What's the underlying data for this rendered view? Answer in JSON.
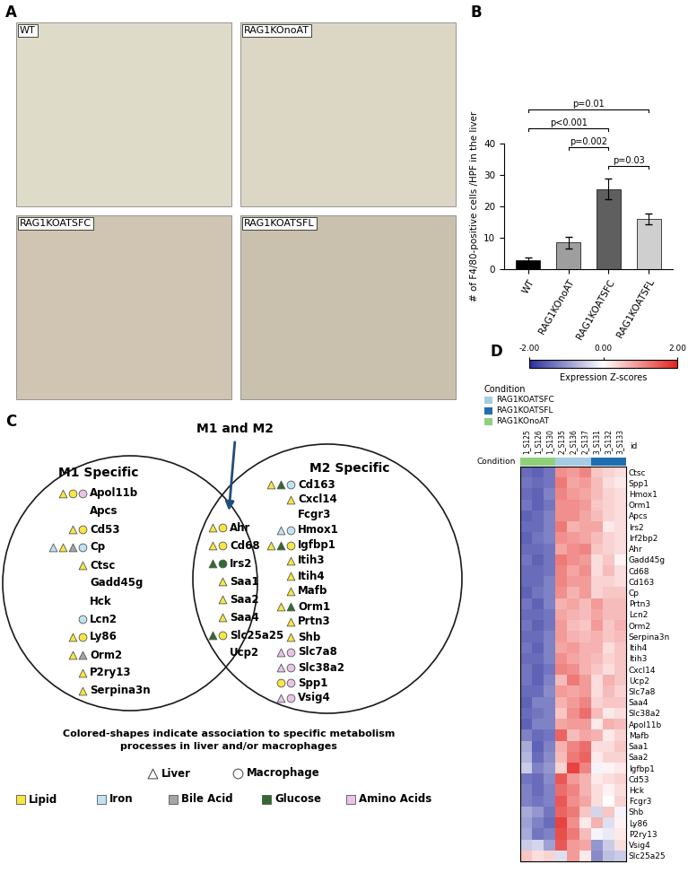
{
  "panel_labels": [
    "A",
    "B",
    "C",
    "D"
  ],
  "micrographs": {
    "labels": [
      "WT",
      "RAG1KOnoAT",
      "RAG1KOATSFC",
      "RAG1KOATSFL"
    ]
  },
  "chart_data": [
    {
      "type": "bar",
      "ylabel": "# of F4/80-positive cells /HPF in the liver",
      "categories": [
        "WT",
        "RAG1KOnoAT",
        "RAG1KOATSFC",
        "RAG1KOATSFL"
      ],
      "values": [
        3,
        8.5,
        25.5,
        16
      ],
      "errors": [
        0.6,
        1.8,
        3.3,
        1.6
      ],
      "colors": [
        "#000000",
        "#9e9e9e",
        "#5f5f5f",
        "#cfcfcf"
      ],
      "ylim": [
        0,
        40
      ],
      "yticks": [
        0,
        10,
        20,
        30,
        40
      ],
      "annotations": [
        {
          "from": "RAG1KOATSFC",
          "to": "RAG1KOATSFL",
          "text": "p=0.03"
        },
        {
          "from": "RAG1KOnoAT",
          "to": "RAG1KOATSFC",
          "text": "p=0.002"
        },
        {
          "from": "WT",
          "to": "RAG1KOATSFC",
          "text": "p<0.001"
        },
        {
          "from": "WT",
          "to": "RAG1KOATSFL",
          "text": "p=0.01"
        }
      ]
    },
    {
      "type": "heatmap",
      "tick_labels": "y",
      "id_label": "id",
      "condition_label": "Condition",
      "x": [
        "1_S125",
        "1_S126",
        "1_S130",
        "2_S135",
        "2_S136",
        "2_S137",
        "3_S131",
        "3_S132",
        "3_S133"
      ],
      "conditions": [
        "RAG1KOnoAT",
        "RAG1KOnoAT",
        "RAG1KOnoAT",
        "RAG1KOATSFC",
        "RAG1KOATSFC",
        "RAG1KOATSFC",
        "RAG1KOATSFL",
        "RAG1KOATSFL",
        "RAG1KOATSFL"
      ],
      "condition_legend": [
        {
          "name": "RAG1KOATSFC",
          "color": "#a6cbe3"
        },
        {
          "name": "RAG1KOATSFL",
          "color": "#1f6fb0"
        },
        {
          "name": "RAG1KOnoAT",
          "color": "#8fd07a"
        }
      ],
      "y": [
        "Ctsc",
        "Spp1",
        "Hmox1",
        "Orm1",
        "Apcs",
        "Irs2",
        "Irf2bp2",
        "Ahr",
        "Gadd45g",
        "Cd68",
        "Cd163",
        "Cp",
        "Prtn3",
        "Lcn2",
        "Orm2",
        "Serpina3n",
        "Itih4",
        "Itih3",
        "Cxcl14",
        "Ucp2",
        "Slc7a8",
        "Saa4",
        "Slc38a2",
        "Apol11b",
        "Mafb",
        "Saa1",
        "Saa2",
        "Igfbp1",
        "Cd53",
        "Hck",
        "Fcgr3",
        "Shb",
        "Ly86",
        "P2ry13",
        "Vsig4",
        "Slc25a25"
      ],
      "values": [
        [
          -1.4,
          -1.5,
          -1.3,
          1.0,
          0.9,
          1.1,
          0.5,
          0.4,
          0.3
        ],
        [
          -1.3,
          -1.4,
          -1.3,
          1.2,
          0.8,
          0.9,
          0.6,
          0.3,
          0.2
        ],
        [
          -1.4,
          -1.5,
          -1.2,
          1.1,
          0.9,
          0.8,
          0.6,
          0.4,
          0.3
        ],
        [
          -1.3,
          -1.5,
          -1.3,
          1.0,
          1.0,
          0.9,
          0.5,
          0.4,
          0.3
        ],
        [
          -1.5,
          -1.4,
          -1.2,
          1.0,
          1.0,
          0.8,
          0.6,
          0.4,
          0.3
        ],
        [
          -1.4,
          -1.4,
          -1.2,
          1.2,
          0.7,
          0.8,
          0.8,
          0.2,
          0.3
        ],
        [
          -1.5,
          -1.3,
          -1.2,
          1.0,
          0.9,
          0.8,
          0.6,
          0.4,
          0.3
        ],
        [
          -1.4,
          -1.4,
          -1.3,
          0.8,
          1.0,
          1.1,
          0.5,
          0.4,
          0.3
        ],
        [
          -1.3,
          -1.5,
          -1.3,
          1.2,
          1.0,
          0.9,
          0.3,
          0.5,
          0.1
        ],
        [
          -1.4,
          -1.4,
          -1.3,
          1.1,
          0.8,
          1.0,
          0.3,
          0.6,
          0.3
        ],
        [
          -1.4,
          -1.4,
          -1.2,
          1.1,
          0.9,
          0.9,
          0.4,
          0.4,
          0.3
        ],
        [
          -1.5,
          -1.3,
          -1.2,
          1.0,
          0.7,
          0.9,
          0.4,
          0.5,
          0.5
        ],
        [
          -1.3,
          -1.5,
          -1.2,
          0.7,
          0.8,
          0.6,
          0.9,
          0.6,
          0.6
        ],
        [
          -1.4,
          -1.4,
          -1.3,
          0.8,
          0.7,
          0.6,
          0.8,
          0.6,
          0.6
        ],
        [
          -1.3,
          -1.5,
          -1.3,
          0.9,
          0.6,
          0.5,
          0.9,
          0.5,
          0.7
        ],
        [
          -1.4,
          -1.4,
          -1.2,
          0.9,
          0.7,
          0.6,
          0.7,
          0.5,
          0.6
        ],
        [
          -1.3,
          -1.5,
          -1.2,
          0.8,
          0.9,
          0.7,
          0.7,
          0.3,
          0.5
        ],
        [
          -1.4,
          -1.4,
          -1.2,
          1.0,
          0.8,
          0.7,
          0.6,
          0.4,
          0.5
        ],
        [
          -1.3,
          -1.5,
          -1.3,
          1.1,
          1.0,
          0.7,
          0.5,
          0.3,
          0.5
        ],
        [
          -1.3,
          -1.5,
          -1.2,
          0.6,
          1.2,
          0.9,
          0.3,
          0.7,
          0.5
        ],
        [
          -1.4,
          -1.4,
          -1.1,
          0.9,
          0.8,
          0.9,
          0.3,
          0.6,
          0.4
        ],
        [
          -1.5,
          -1.2,
          -1.2,
          0.7,
          0.9,
          1.1,
          0.4,
          0.5,
          0.5
        ],
        [
          -1.4,
          -1.3,
          -1.2,
          0.5,
          1.0,
          1.3,
          0.6,
          0.2,
          0.3
        ],
        [
          -1.5,
          -1.2,
          -1.2,
          0.8,
          0.9,
          0.9,
          0.2,
          0.7,
          0.6
        ],
        [
          -1.2,
          -1.4,
          -1.3,
          1.4,
          0.6,
          0.8,
          0.7,
          0.2,
          0.4
        ],
        [
          -0.8,
          -1.5,
          -1.2,
          0.7,
          1.1,
          1.3,
          0.3,
          0.3,
          0.5
        ],
        [
          -0.7,
          -1.4,
          -1.1,
          0.6,
          1.2,
          1.4,
          0.2,
          0.4,
          0.4
        ],
        [
          -0.5,
          -1.2,
          -1.0,
          0.4,
          1.7,
          1.1,
          -0.1,
          0.1,
          0.2
        ],
        [
          -1.3,
          -1.4,
          -1.1,
          1.5,
          0.9,
          0.7,
          0.2,
          0.3,
          0.4
        ],
        [
          -1.2,
          -1.4,
          -1.2,
          1.3,
          1.1,
          0.7,
          0.3,
          0.1,
          0.3
        ],
        [
          -1.2,
          -1.3,
          -1.2,
          1.5,
          1.0,
          0.8,
          0.3,
          0.0,
          0.4
        ],
        [
          -0.8,
          -1.0,
          -1.3,
          1.4,
          1.2,
          0.5,
          -0.4,
          0.5,
          -0.1
        ],
        [
          -0.9,
          -1.2,
          -1.4,
          1.7,
          1.0,
          0.2,
          0.7,
          -0.3,
          0.1
        ],
        [
          -0.8,
          -1.3,
          -1.2,
          1.6,
          1.2,
          0.6,
          -0.1,
          -0.2,
          0.2
        ],
        [
          -0.5,
          -0.4,
          -0.9,
          1.5,
          0.9,
          0.8,
          -1.0,
          -0.5,
          0.3
        ],
        [
          0.5,
          0.3,
          0.4,
          -0.3,
          0.9,
          0.2,
          -1.1,
          -0.6,
          -0.5
        ]
      ],
      "colorbar": {
        "label": "Expression Z-scores",
        "range": [
          -2,
          2
        ],
        "ticks": [
          {
            "value": -2,
            "label": "-2.00"
          },
          {
            "value": 0,
            "label": "0.00"
          },
          {
            "value": 2,
            "label": "2.00"
          }
        ]
      }
    }
  ],
  "diagram": {
    "left_title": "M1 Specific",
    "right_title": "M2 Specific",
    "center_title": "M1 and M2",
    "left": [
      {
        "gene": "Apol11b",
        "marks": [
          [
            "Liver",
            "Lipid"
          ],
          [
            "Macrophage",
            "Lipid"
          ],
          [
            "Macrophage",
            "Amino Acids"
          ]
        ]
      },
      {
        "gene": "Apcs",
        "marks": []
      },
      {
        "gene": "Cd53",
        "marks": [
          [
            "Liver",
            "Lipid"
          ],
          [
            "Macrophage",
            "Lipid"
          ]
        ]
      },
      {
        "gene": "Cp",
        "marks": [
          [
            "Liver",
            "Iron"
          ],
          [
            "Liver",
            "Lipid"
          ],
          [
            "Liver",
            "Bile Acid"
          ],
          [
            "Macrophage",
            "Iron"
          ]
        ]
      },
      {
        "gene": "Ctsc",
        "marks": [
          [
            "Liver",
            "Lipid"
          ]
        ]
      },
      {
        "gene": "Gadd45g",
        "marks": []
      },
      {
        "gene": "Hck",
        "marks": []
      },
      {
        "gene": "Lcn2",
        "marks": [
          [
            "Macrophage",
            "Iron"
          ]
        ]
      },
      {
        "gene": "Ly86",
        "marks": [
          [
            "Liver",
            "Lipid"
          ],
          [
            "Macrophage",
            "Lipid"
          ]
        ]
      },
      {
        "gene": "Orm2",
        "marks": [
          [
            "Liver",
            "Lipid"
          ],
          [
            "Liver",
            "Bile Acid"
          ]
        ]
      },
      {
        "gene": "P2ry13",
        "marks": [
          [
            "Liver",
            "Lipid"
          ]
        ]
      },
      {
        "gene": "Serpina3n",
        "marks": [
          [
            "Liver",
            "Lipid"
          ]
        ]
      }
    ],
    "center": [
      {
        "gene": "Ahr",
        "marks": [
          [
            "Liver",
            "Lipid"
          ],
          [
            "Macrophage",
            "Lipid"
          ]
        ]
      },
      {
        "gene": "Cd68",
        "marks": [
          [
            "Liver",
            "Lipid"
          ],
          [
            "Macrophage",
            "Lipid"
          ]
        ]
      },
      {
        "gene": "Irs2",
        "marks": [
          [
            "Liver",
            "Glucose"
          ],
          [
            "Macrophage",
            "Glucose"
          ]
        ]
      },
      {
        "gene": "Saa1",
        "marks": [
          [
            "Liver",
            "Lipid"
          ]
        ]
      },
      {
        "gene": "Saa2",
        "marks": [
          [
            "Liver",
            "Lipid"
          ]
        ]
      },
      {
        "gene": "Saa4",
        "marks": [
          [
            "Liver",
            "Lipid"
          ]
        ]
      },
      {
        "gene": "Slc25a25",
        "marks": [
          [
            "Liver",
            "Glucose"
          ],
          [
            "Macrophage",
            "Lipid"
          ]
        ]
      },
      {
        "gene": "Ucp2",
        "marks": []
      }
    ],
    "right": [
      {
        "gene": "Cd163",
        "marks": [
          [
            "Liver",
            "Lipid"
          ],
          [
            "Liver",
            "Glucose"
          ],
          [
            "Macrophage",
            "Iron"
          ]
        ]
      },
      {
        "gene": "Cxcl14",
        "marks": [
          [
            "Liver",
            "Lipid"
          ]
        ]
      },
      {
        "gene": "Fcgr3",
        "marks": []
      },
      {
        "gene": "Hmox1",
        "marks": [
          [
            "Liver",
            "Iron"
          ],
          [
            "Macrophage",
            "Iron"
          ]
        ]
      },
      {
        "gene": "Igfbp1",
        "marks": [
          [
            "Liver",
            "Lipid"
          ],
          [
            "Liver",
            "Glucose"
          ],
          [
            "Macrophage",
            "Lipid"
          ]
        ]
      },
      {
        "gene": "Itih3",
        "marks": [
          [
            "Liver",
            "Lipid"
          ]
        ]
      },
      {
        "gene": "Itih4",
        "marks": [
          [
            "Liver",
            "Lipid"
          ]
        ]
      },
      {
        "gene": "Mafb",
        "marks": [
          [
            "Liver",
            "Lipid"
          ]
        ]
      },
      {
        "gene": "Orm1",
        "marks": [
          [
            "Liver",
            "Lipid"
          ],
          [
            "Liver",
            "Glucose"
          ]
        ]
      },
      {
        "gene": "Prtn3",
        "marks": [
          [
            "Liver",
            "Lipid"
          ]
        ]
      },
      {
        "gene": "Shb",
        "marks": [
          [
            "Liver",
            "Lipid"
          ]
        ]
      },
      {
        "gene": "Slc7a8",
        "marks": [
          [
            "Liver",
            "Amino Acids"
          ],
          [
            "Macrophage",
            "Amino Acids"
          ]
        ]
      },
      {
        "gene": "Slc38a2",
        "marks": [
          [
            "Liver",
            "Amino Acids"
          ],
          [
            "Macrophage",
            "Amino Acids"
          ]
        ]
      },
      {
        "gene": "Spp1",
        "marks": [
          [
            "Macrophage",
            "Lipid"
          ],
          [
            "Macrophage",
            "Amino Acids"
          ]
        ]
      },
      {
        "gene": "Vsig4",
        "marks": [
          [
            "Liver",
            "Amino Acids"
          ],
          [
            "Macrophage",
            "Amino Acids"
          ]
        ]
      }
    ],
    "caption": [
      "Colored-shapes indicate association to specific metabolism",
      "processes in liver and/or macrophages"
    ],
    "shape_legend": [
      {
        "name": "Liver",
        "marker": "triangle"
      },
      {
        "name": "Macrophage",
        "marker": "circle"
      }
    ],
    "color_legend": [
      {
        "name": "Lipid",
        "color": "#f5e642"
      },
      {
        "name": "Iron",
        "color": "#bfe3f0"
      },
      {
        "name": "Bile Acid",
        "color": "#a6a6a6"
      },
      {
        "name": "Glucose",
        "color": "#2e6b30"
      },
      {
        "name": "Amino Acids",
        "color": "#e8c4e6"
      }
    ]
  }
}
